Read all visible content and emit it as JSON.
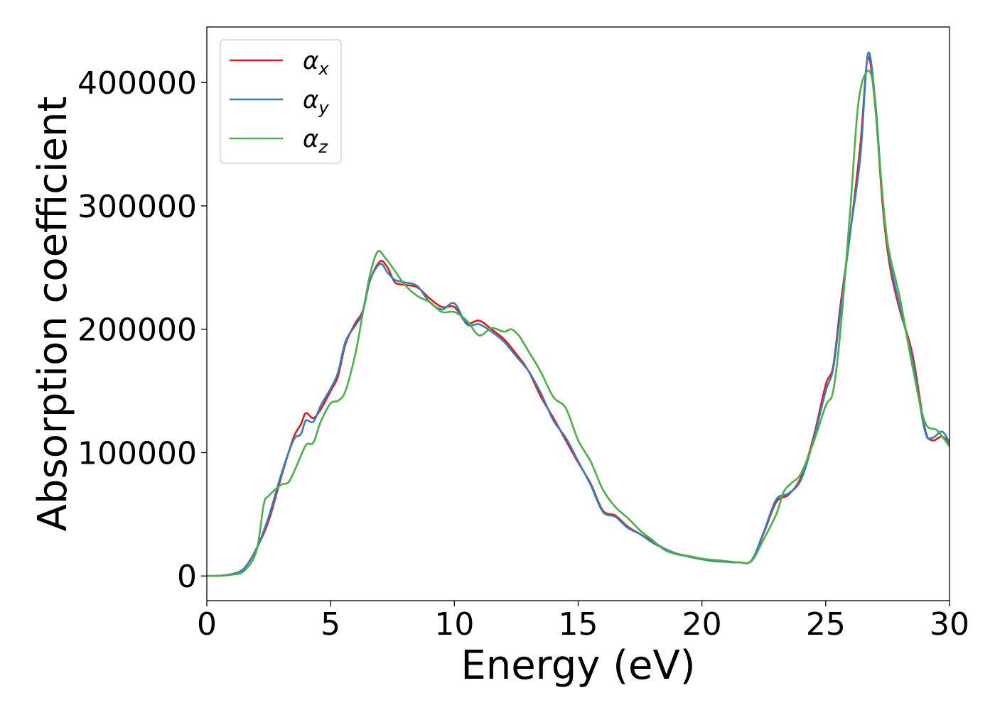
{
  "chart_data": {
    "type": "line",
    "title": "",
    "xlabel": "Energy (eV)",
    "ylabel": "Absorption coefficient",
    "xlim": [
      0,
      30
    ],
    "ylim": [
      -20000,
      445000
    ],
    "xticks": [
      0,
      5,
      10,
      15,
      20,
      25,
      30
    ],
    "xtick_labels": [
      "0",
      "5",
      "10",
      "15",
      "20",
      "25",
      "30"
    ],
    "yticks": [
      0,
      100000,
      200000,
      300000,
      400000
    ],
    "ytick_labels": [
      "0",
      "100000",
      "200000",
      "300000",
      "400000"
    ],
    "grid": false,
    "legend_position": "top-left",
    "legend": [
      {
        "symbol": "α",
        "sub": "x",
        "color": "#e41a1c"
      },
      {
        "symbol": "α",
        "sub": "y",
        "color": "#377eb8"
      },
      {
        "symbol": "α",
        "sub": "z",
        "color": "#4daf4a"
      }
    ],
    "series": [
      {
        "name": "αx",
        "color": "#e41a1c",
        "points": [
          [
            0,
            0
          ],
          [
            0.5,
            200
          ],
          [
            1,
            1500
          ],
          [
            1.5,
            6000
          ],
          [
            2,
            22000
          ],
          [
            2.5,
            45000
          ],
          [
            3,
            80000
          ],
          [
            3.5,
            112000
          ],
          [
            3.8,
            123000
          ],
          [
            4,
            132000
          ],
          [
            4.3,
            128000
          ],
          [
            4.6,
            135000
          ],
          [
            5,
            150000
          ],
          [
            5.3,
            162000
          ],
          [
            5.6,
            188000
          ],
          [
            6,
            205000
          ],
          [
            6.3,
            215000
          ],
          [
            6.6,
            240000
          ],
          [
            7,
            255000
          ],
          [
            7.3,
            250000
          ],
          [
            7.6,
            238000
          ],
          [
            8,
            236000
          ],
          [
            8.5,
            234000
          ],
          [
            9,
            225000
          ],
          [
            9.5,
            218000
          ],
          [
            10,
            218000
          ],
          [
            10.5,
            205000
          ],
          [
            11,
            207000
          ],
          [
            11.5,
            200000
          ],
          [
            12,
            192000
          ],
          [
            12.5,
            180000
          ],
          [
            13,
            166000
          ],
          [
            13.5,
            145000
          ],
          [
            14,
            128000
          ],
          [
            14.5,
            110000
          ],
          [
            15,
            92000
          ],
          [
            15.5,
            75000
          ],
          [
            16,
            53000
          ],
          [
            16.5,
            49000
          ],
          [
            17,
            40000
          ],
          [
            17.5,
            34000
          ],
          [
            18,
            28000
          ],
          [
            18.5,
            22000
          ],
          [
            19,
            18000
          ],
          [
            19.5,
            16000
          ],
          [
            20,
            14000
          ],
          [
            20.5,
            12500
          ],
          [
            21,
            11500
          ],
          [
            21.5,
            11000
          ],
          [
            22,
            12500
          ],
          [
            22.5,
            35000
          ],
          [
            23,
            60000
          ],
          [
            23.5,
            66000
          ],
          [
            24,
            80000
          ],
          [
            24.5,
            112000
          ],
          [
            25,
            155000
          ],
          [
            25.3,
            170000
          ],
          [
            25.6,
            220000
          ],
          [
            26,
            280000
          ],
          [
            26.4,
            350000
          ],
          [
            26.7,
            420000
          ],
          [
            27,
            380000
          ],
          [
            27.3,
            300000
          ],
          [
            27.6,
            250000
          ],
          [
            28,
            215000
          ],
          [
            28.5,
            180000
          ],
          [
            29,
            120000
          ],
          [
            29.3,
            110000
          ],
          [
            29.7,
            113000
          ],
          [
            30,
            107000
          ]
        ]
      },
      {
        "name": "αy",
        "color": "#377eb8",
        "points": [
          [
            0,
            0
          ],
          [
            0.5,
            200
          ],
          [
            1,
            1500
          ],
          [
            1.5,
            6000
          ],
          [
            2,
            22000
          ],
          [
            2.5,
            48000
          ],
          [
            3,
            82000
          ],
          [
            3.5,
            110000
          ],
          [
            3.8,
            115000
          ],
          [
            4,
            126000
          ],
          [
            4.3,
            125000
          ],
          [
            4.6,
            138000
          ],
          [
            5,
            152000
          ],
          [
            5.3,
            165000
          ],
          [
            5.6,
            190000
          ],
          [
            6,
            203000
          ],
          [
            6.3,
            214000
          ],
          [
            6.6,
            240000
          ],
          [
            7,
            253000
          ],
          [
            7.3,
            246000
          ],
          [
            7.6,
            240000
          ],
          [
            8,
            238000
          ],
          [
            8.5,
            235000
          ],
          [
            9,
            222000
          ],
          [
            9.5,
            216000
          ],
          [
            10,
            221000
          ],
          [
            10.5,
            204000
          ],
          [
            11,
            204000
          ],
          [
            11.5,
            198000
          ],
          [
            12,
            190000
          ],
          [
            12.5,
            178000
          ],
          [
            13,
            166000
          ],
          [
            13.5,
            148000
          ],
          [
            14,
            126000
          ],
          [
            14.5,
            112000
          ],
          [
            15,
            93000
          ],
          [
            15.5,
            74000
          ],
          [
            16,
            52000
          ],
          [
            16.5,
            48000
          ],
          [
            17,
            39000
          ],
          [
            17.5,
            34000
          ],
          [
            18,
            27000
          ],
          [
            18.5,
            22000
          ],
          [
            19,
            18000
          ],
          [
            19.5,
            15500
          ],
          [
            20,
            13500
          ],
          [
            20.5,
            12000
          ],
          [
            21,
            11500
          ],
          [
            21.5,
            11000
          ],
          [
            22,
            12500
          ],
          [
            22.5,
            36000
          ],
          [
            23,
            62000
          ],
          [
            23.5,
            67000
          ],
          [
            24,
            78000
          ],
          [
            24.5,
            110000
          ],
          [
            25,
            150000
          ],
          [
            25.3,
            168000
          ],
          [
            25.6,
            215000
          ],
          [
            26,
            280000
          ],
          [
            26.4,
            340000
          ],
          [
            26.7,
            423000
          ],
          [
            27,
            385000
          ],
          [
            27.3,
            305000
          ],
          [
            27.6,
            255000
          ],
          [
            28,
            218000
          ],
          [
            28.5,
            175000
          ],
          [
            29,
            118000
          ],
          [
            29.3,
            112000
          ],
          [
            29.7,
            117000
          ],
          [
            30,
            108000
          ]
        ]
      },
      {
        "name": "αz",
        "color": "#4daf4a",
        "points": [
          [
            0,
            0
          ],
          [
            0.5,
            200
          ],
          [
            1,
            1000
          ],
          [
            1.5,
            4000
          ],
          [
            2,
            20000
          ],
          [
            2.3,
            58000
          ],
          [
            2.5,
            65000
          ],
          [
            3,
            74000
          ],
          [
            3.3,
            76000
          ],
          [
            3.6,
            88000
          ],
          [
            4,
            106000
          ],
          [
            4.3,
            108000
          ],
          [
            4.6,
            125000
          ],
          [
            5,
            140000
          ],
          [
            5.3,
            142000
          ],
          [
            5.6,
            150000
          ],
          [
            6,
            180000
          ],
          [
            6.3,
            213000
          ],
          [
            6.6,
            245000
          ],
          [
            6.9,
            263000
          ],
          [
            7.2,
            258000
          ],
          [
            7.5,
            250000
          ],
          [
            8,
            236000
          ],
          [
            8.5,
            227000
          ],
          [
            9,
            222000
          ],
          [
            9.5,
            214000
          ],
          [
            10,
            214000
          ],
          [
            10.5,
            207000
          ],
          [
            11,
            195000
          ],
          [
            11.5,
            201000
          ],
          [
            12,
            198000
          ],
          [
            12.3,
            200000
          ],
          [
            12.6,
            195000
          ],
          [
            13,
            182000
          ],
          [
            13.5,
            165000
          ],
          [
            14,
            145000
          ],
          [
            14.5,
            136000
          ],
          [
            15,
            110000
          ],
          [
            15.5,
            93000
          ],
          [
            16,
            70000
          ],
          [
            16.5,
            56000
          ],
          [
            17,
            47000
          ],
          [
            17.5,
            37000
          ],
          [
            18,
            29000
          ],
          [
            18.5,
            21000
          ],
          [
            19,
            17500
          ],
          [
            19.5,
            16000
          ],
          [
            20,
            14000
          ],
          [
            20.5,
            13000
          ],
          [
            21,
            12000
          ],
          [
            21.5,
            11000
          ],
          [
            22,
            12000
          ],
          [
            22.5,
            30000
          ],
          [
            23,
            50000
          ],
          [
            23.3,
            68000
          ],
          [
            23.6,
            75000
          ],
          [
            24,
            83000
          ],
          [
            24.5,
            108000
          ],
          [
            25,
            138000
          ],
          [
            25.3,
            150000
          ],
          [
            25.6,
            200000
          ],
          [
            26,
            300000
          ],
          [
            26.3,
            380000
          ],
          [
            26.6,
            407000
          ],
          [
            26.9,
            400000
          ],
          [
            27.2,
            330000
          ],
          [
            27.5,
            270000
          ],
          [
            28,
            225000
          ],
          [
            28.5,
            170000
          ],
          [
            29,
            125000
          ],
          [
            29.5,
            118000
          ],
          [
            30,
            105000
          ]
        ]
      }
    ]
  }
}
